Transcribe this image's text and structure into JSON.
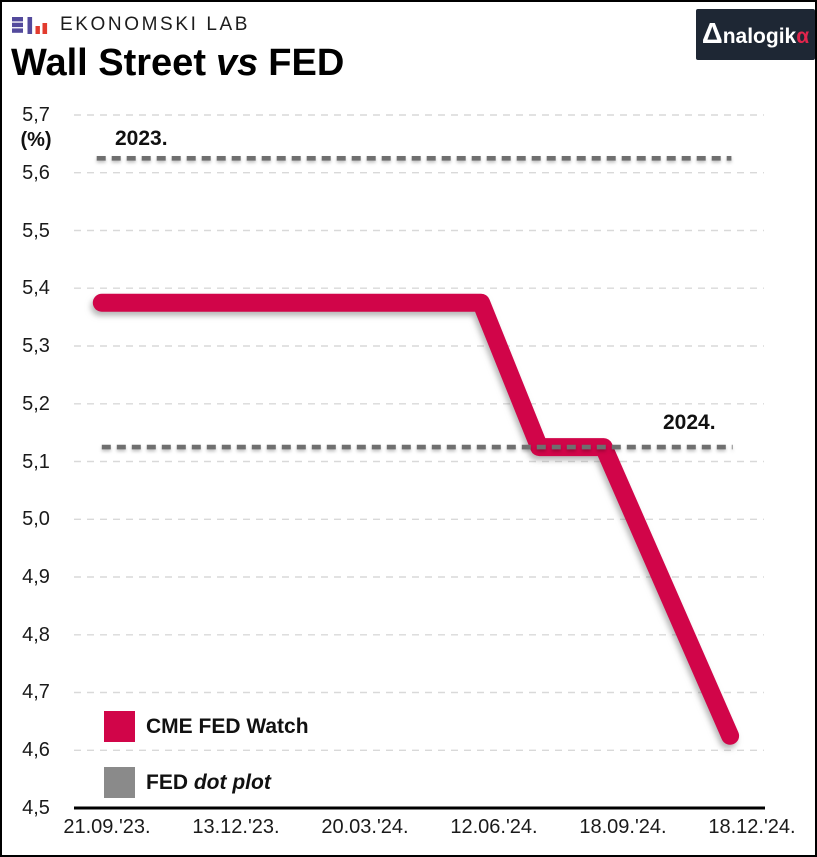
{
  "header": {
    "brand": "EKONOMSKI LAB",
    "title": {
      "part1": "Wall Street",
      "vs": "vs",
      "part2": "FED"
    },
    "analogika": {
      "delta": "Δ",
      "mid": "nalogik",
      "alpha": "α"
    }
  },
  "colors": {
    "accent_red": "#d10549",
    "dotplot_gray": "#6f6f6f",
    "legend_gray": "#8a8a8a",
    "gridline": "#d9d9d9",
    "axis": "#000000",
    "text": "#1a1a1a",
    "badge_bg": "#1e2734",
    "badge_alpha": "#e0254c",
    "logo_purple": "#534a9c",
    "logo_red": "#e23b2e"
  },
  "chart_data": {
    "type": "line",
    "title": "Wall Street vs FED",
    "ylabel": "(%)",
    "ylim": [
      4.5,
      5.7
    ],
    "y_tick_step": 0.1,
    "y_tick_labels": [
      "5,7",
      "5,6",
      "5,5",
      "5,4",
      "5,3",
      "5,2",
      "5,1",
      "5,0",
      "4,9",
      "4,8",
      "4,7",
      "4,6",
      "4,5"
    ],
    "x_tick_labels": [
      "21.09.'23.",
      "13.12.'23.",
      "20.03.'24.",
      "12.06.'24.",
      "18.09.'24.",
      "18.12.'24."
    ],
    "grid": "horizontal dashed",
    "legend_position": "bottom-left inside",
    "x_unit": "tick_index (0 = 21.09.'23., 5 = 18.12.'24.)",
    "series": [
      {
        "name": "CME FED Watch",
        "kind": "polyline",
        "color": "#d10549",
        "points": [
          {
            "t": -0.04,
            "v": 5.375
          },
          {
            "t": 2.9,
            "v": 5.375
          },
          {
            "t": 3.35,
            "v": 5.125
          },
          {
            "t": 3.85,
            "v": 5.125
          },
          {
            "t": 4.83,
            "v": 4.625
          }
        ]
      },
      {
        "name": "FED dot plot 2023",
        "kind": "dashed-horizontal",
        "color": "#6f6f6f",
        "value": 5.625,
        "t_start": -0.08,
        "t_end": 4.84
      },
      {
        "name": "FED dot plot 2024",
        "kind": "dashed-horizontal",
        "color": "#6f6f6f",
        "value": 5.125,
        "t_start": -0.04,
        "t_end": 4.85
      }
    ],
    "annotations": [
      {
        "text": "2023.",
        "t": 0.06,
        "v": 5.655
      },
      {
        "text": "2024.",
        "t": 4.31,
        "v": 5.163
      }
    ],
    "legend": [
      {
        "label": "CME FED Watch",
        "color": "#d10549"
      },
      {
        "label_bold": "FED",
        "label_italic": "dot plot",
        "color": "#8a8a8a"
      }
    ]
  }
}
